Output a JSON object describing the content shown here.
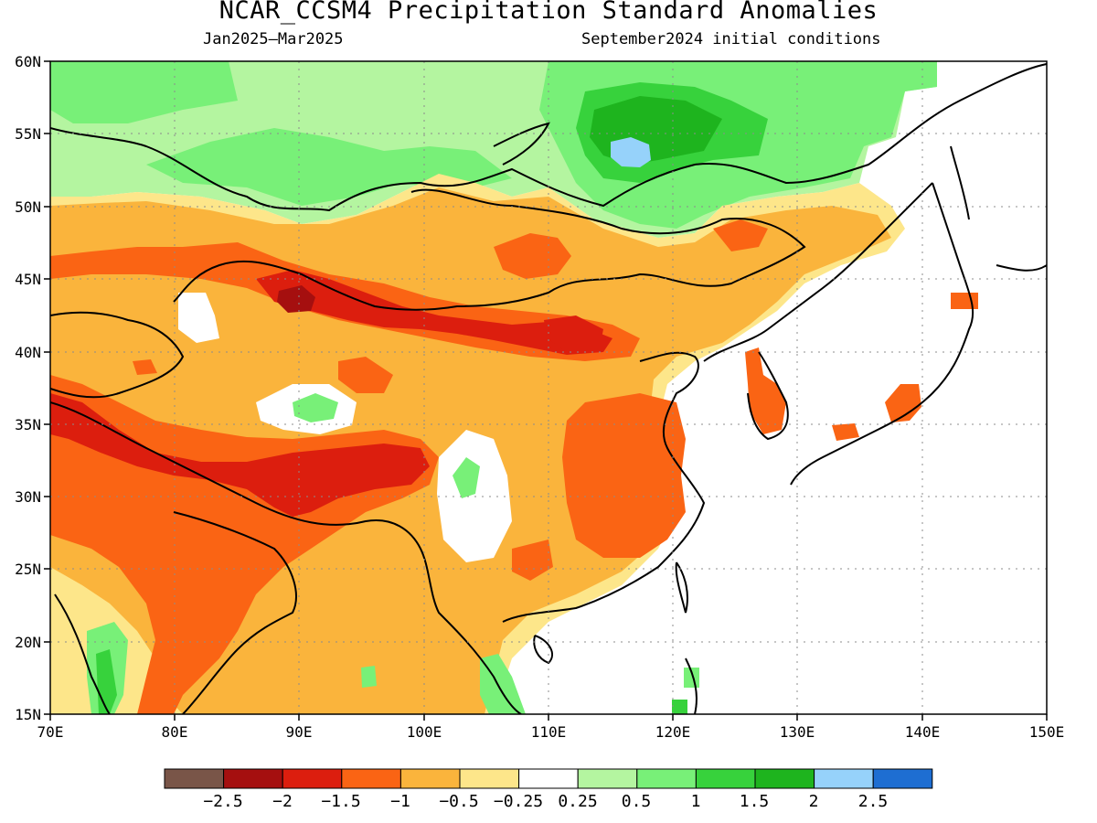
{
  "map": {
    "title": "NCAR_CCSM4 Precipitation Standard Anomalies",
    "period": "Jan2025–Mar2025",
    "init": "September2024 initial conditions",
    "lat_labels": [
      "60N",
      "55N",
      "50N",
      "45N",
      "40N",
      "35N",
      "30N",
      "25N",
      "20N",
      "15N"
    ],
    "lon_labels": [
      "70E",
      "80E",
      "90E",
      "100E",
      "110E",
      "120E",
      "130E",
      "140E",
      "150E"
    ],
    "lat_range": [
      15,
      60
    ],
    "lon_range": [
      70,
      150
    ],
    "grid": "dotted"
  },
  "legend": {
    "colors": [
      "#795548",
      "#a50f0f",
      "#dc1e0e",
      "#fa6414",
      "#fab43c",
      "#fde68a",
      "#ffffff",
      "#b4f5a0",
      "#78f078",
      "#37d23c",
      "#1eb41e",
      "#96d2fa",
      "#1e6ed2"
    ],
    "labels": [
      "−2.5",
      "−2",
      "−1.5",
      "−1",
      "−0.5",
      "−0.25",
      "0.25",
      "0.5",
      "1",
      "1.5",
      "2",
      "2.5"
    ]
  }
}
